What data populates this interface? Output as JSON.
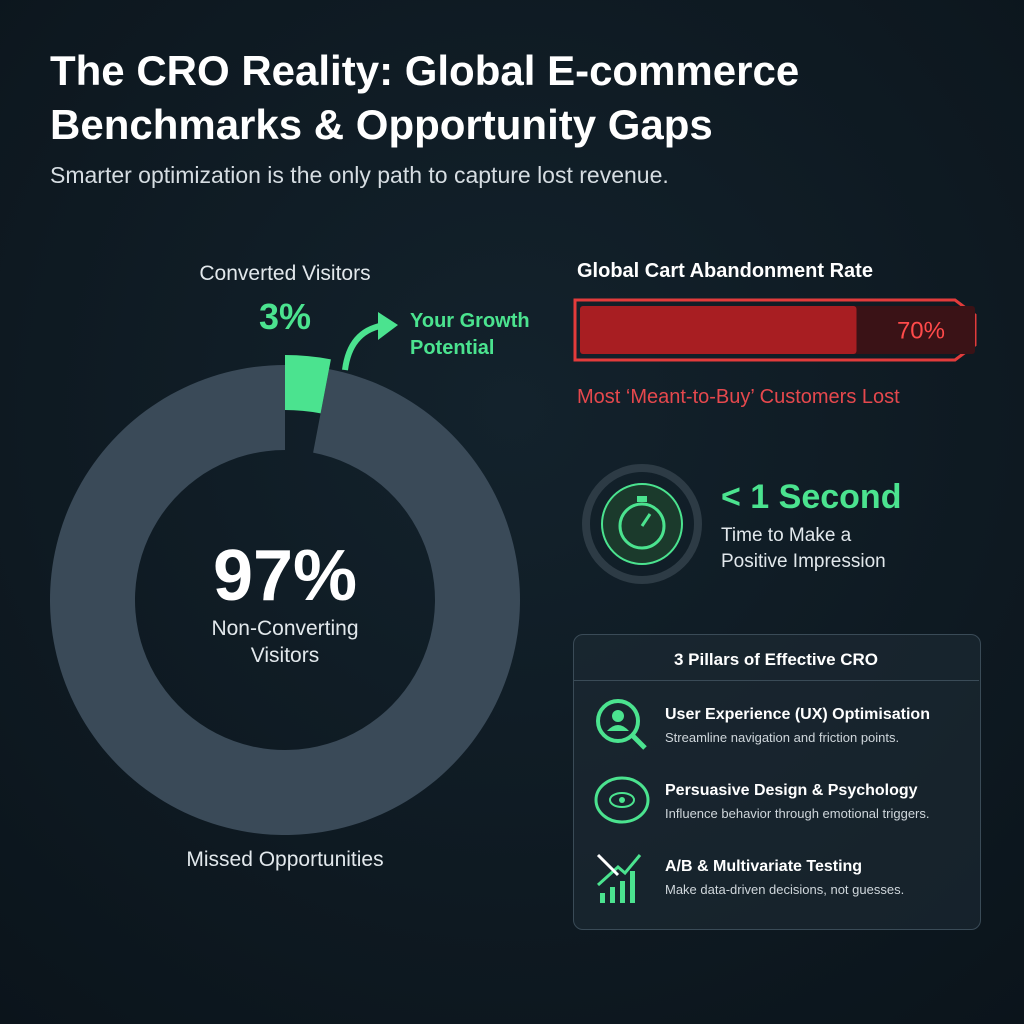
{
  "header": {
    "title": "The CRO Reality: Global E-commerce Benchmarks & Opportunity Gaps",
    "subtitle": "Smarter optimization is the only path to capture lost revenue."
  },
  "chart_data": {
    "type": "pie",
    "categories": [
      "Converted Visitors",
      "Non-Converting Visitors"
    ],
    "values": [
      3,
      97
    ],
    "value_labels": [
      "3%",
      "97%"
    ],
    "colors": [
      "#4be38f",
      "#3a4a58"
    ],
    "annotations": [
      "Your Growth Potential",
      "Missed Opportunities"
    ]
  },
  "abandonment": {
    "title": "Global Cart Abandonment Rate",
    "value": 70,
    "value_label": "70%",
    "note": "Most ‘Meant-to-Buy’ Customers Lost"
  },
  "speed": {
    "headline": "< 1 Second",
    "text": "Time to Make a Positive Impression"
  },
  "pillars": {
    "title": "3 Pillars of Effective CRO",
    "items": [
      {
        "title": "User Experience (UX) Optimisation",
        "text": "Streamline navigation and friction points."
      },
      {
        "title": "Persuasive Design & Psychology",
        "text": "Influence behavior through emotional triggers."
      },
      {
        "title": "A/B & Multivariate Testing",
        "text": "Make data-driven decisions, not guesses."
      }
    ]
  }
}
